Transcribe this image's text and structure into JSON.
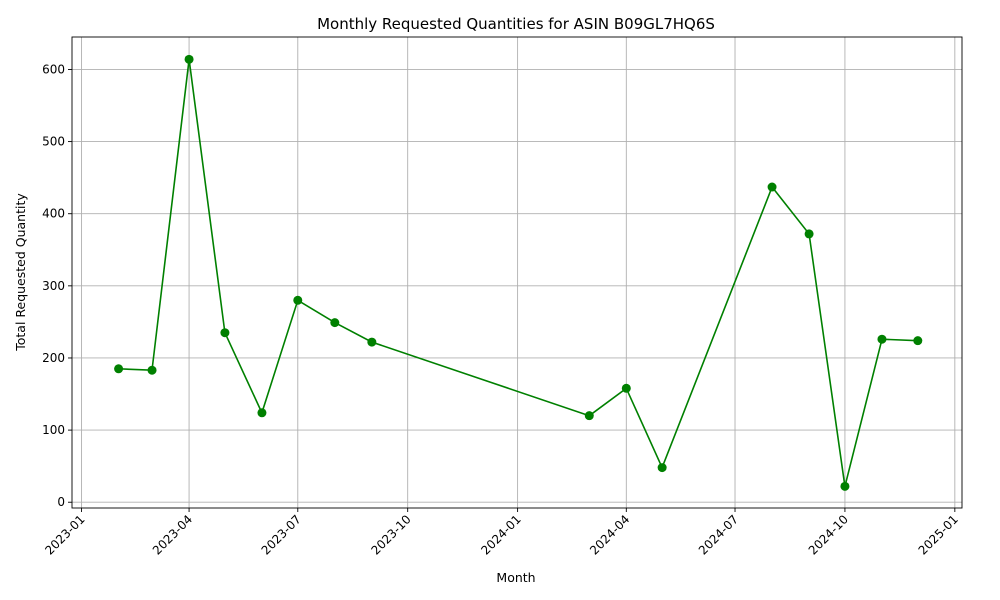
{
  "chart_data": {
    "type": "line",
    "title": "Monthly Requested Quantities for ASIN B09GL7HQ6S",
    "xlabel": "Month",
    "ylabel": "Total Requested Quantity",
    "x_type": "date",
    "xlim": [
      "2022-12-24",
      "2025-01-07"
    ],
    "ylim": [
      -8,
      645
    ],
    "x_ticks": [
      "2023-01-01",
      "2023-04-01",
      "2023-07-01",
      "2023-10-01",
      "2024-01-01",
      "2024-04-01",
      "2024-07-01",
      "2024-10-01",
      "2025-01-01"
    ],
    "x_tick_labels": [
      "2023-01",
      "2023-04",
      "2023-07",
      "2023-10",
      "2024-01",
      "2024-04",
      "2024-07",
      "2024-10",
      "2025-01"
    ],
    "y_ticks": [
      0,
      100,
      200,
      300,
      400,
      500,
      600
    ],
    "y_tick_labels": [
      "0",
      "100",
      "200",
      "300",
      "400",
      "500",
      "600"
    ],
    "grid": true,
    "series": [
      {
        "color": "#008000",
        "marker": "circle",
        "points": [
          {
            "x": "2023-02-01",
            "y": 185
          },
          {
            "x": "2023-03-01",
            "y": 183
          },
          {
            "x": "2023-04-01",
            "y": 614
          },
          {
            "x": "2023-05-01",
            "y": 235
          },
          {
            "x": "2023-06-01",
            "y": 124
          },
          {
            "x": "2023-07-01",
            "y": 280
          },
          {
            "x": "2023-08-01",
            "y": 249
          },
          {
            "x": "2023-09-01",
            "y": 222
          },
          {
            "x": "2024-03-01",
            "y": 120
          },
          {
            "x": "2024-04-01",
            "y": 158
          },
          {
            "x": "2024-05-01",
            "y": 48
          },
          {
            "x": "2024-08-01",
            "y": 437
          },
          {
            "x": "2024-09-01",
            "y": 372
          },
          {
            "x": "2024-10-01",
            "y": 22
          },
          {
            "x": "2024-11-01",
            "y": 226
          },
          {
            "x": "2024-12-01",
            "y": 224
          }
        ]
      }
    ]
  }
}
